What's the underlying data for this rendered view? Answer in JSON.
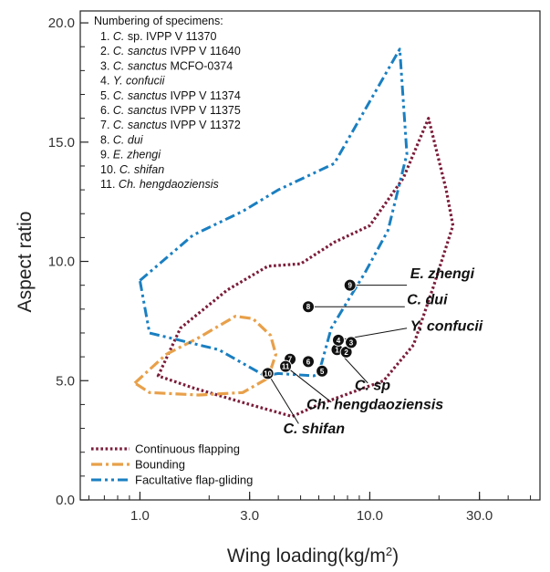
{
  "chart_data": {
    "type": "scatter",
    "xlabel": "Wing loading(kg/m",
    "xlabel_sup": "2",
    "xlabel_end": ")",
    "ylabel": "Aspect ratio",
    "xscale": "log",
    "xlim": [
      0.55,
      55
    ],
    "ylim": [
      0,
      20.5
    ],
    "xticks": [
      {
        "value": 1,
        "label": "1.0"
      },
      {
        "value": 3,
        "label": "3.0"
      },
      {
        "value": 10,
        "label": "10.0"
      },
      {
        "value": 30,
        "label": "30.0"
      }
    ],
    "yticks": [
      {
        "value": 0,
        "label": "0.0"
      },
      {
        "value": 5,
        "label": "5.0"
      },
      {
        "value": 10,
        "label": "10.0"
      },
      {
        "value": 15,
        "label": "15.0"
      },
      {
        "value": 20,
        "label": "20.0"
      }
    ],
    "specimen_title": "Numbering of specimens:",
    "specimens": [
      {
        "num": "1.",
        "genus": "C.",
        "rest": "sp. IVPP V 11370"
      },
      {
        "num": "2.",
        "genus": "C. sanctus",
        "rest": "IVPP V 11640"
      },
      {
        "num": "3.",
        "genus": "C. sanctus",
        "rest": "MCFO-0374"
      },
      {
        "num": "4.",
        "genus": "Y. confucii",
        "rest": ""
      },
      {
        "num": "5.",
        "genus": "C. sanctus",
        "rest": "IVPP V 11374"
      },
      {
        "num": "6.",
        "genus": "C. sanctus",
        "rest": "IVPP V 11375"
      },
      {
        "num": "7.",
        "genus": "C. sanctus",
        "rest": "IVPP V 11372"
      },
      {
        "num": "8.",
        "genus": "C. dui",
        "rest": ""
      },
      {
        "num": "9.",
        "genus": "E. zhengi",
        "rest": ""
      },
      {
        "num": "10.",
        "genus": "C. shifan",
        "rest": ""
      },
      {
        "num": "11.",
        "genus": "Ch. hengdaoziensis",
        "rest": ""
      }
    ],
    "points": [
      {
        "label": "1",
        "x": 7.2,
        "y": 6.3
      },
      {
        "label": "2",
        "x": 7.9,
        "y": 6.2
      },
      {
        "label": "3",
        "x": 8.3,
        "y": 6.6
      },
      {
        "label": "4",
        "x": 7.3,
        "y": 6.7
      },
      {
        "label": "5",
        "x": 6.2,
        "y": 5.4
      },
      {
        "label": "6",
        "x": 5.4,
        "y": 5.8
      },
      {
        "label": "7",
        "x": 4.5,
        "y": 5.9
      },
      {
        "label": "8",
        "x": 5.4,
        "y": 8.1
      },
      {
        "label": "9",
        "x": 8.2,
        "y": 9.0
      },
      {
        "label": "10",
        "x": 3.6,
        "y": 5.3
      },
      {
        "label": "11",
        "x": 4.3,
        "y": 5.6
      }
    ],
    "callouts": [
      {
        "text": "E. zhengi",
        "point": "9",
        "italic_part": "E. zhengi",
        "tx": 15,
        "ty": 9.3,
        "lx": 14.5,
        "ly": 9.0
      },
      {
        "text": "C. dui",
        "point": "8",
        "tx": 14.5,
        "ty": 8.2,
        "lx": 14.2,
        "ly": 8.1
      },
      {
        "text": "Y. confucii",
        "point": "4",
        "tx": 15,
        "ty": 7.1,
        "lx": 14.5,
        "ly": 7.2
      },
      {
        "text": "C. sp",
        "point": "1",
        "tx": 8.6,
        "ty": 4.6,
        "lx": 9.8,
        "ly": 4.9
      },
      {
        "text": "Ch. hengdaoziensis",
        "point": "11",
        "tx": 5.3,
        "ty": 3.8,
        "lx": 6.8,
        "ly": 4.1
      },
      {
        "text": "C. shifan",
        "point": "10",
        "tx": 4.2,
        "ty": 2.8,
        "lx": 4.9,
        "ly": 3.2
      }
    ],
    "series": [
      {
        "name": "Continuous flapping",
        "color": "#7b1d3a",
        "style": "dotted",
        "polygon": [
          [
            1.2,
            5.2
          ],
          [
            1.5,
            7.2
          ],
          [
            2.4,
            8.8
          ],
          [
            3.6,
            9.8
          ],
          [
            5.0,
            9.9
          ],
          [
            7.0,
            10.8
          ],
          [
            10.0,
            11.5
          ],
          [
            14.0,
            13.5
          ],
          [
            18.0,
            16.0
          ],
          [
            21.5,
            13.0
          ],
          [
            23.0,
            11.5
          ],
          [
            19.0,
            9.0
          ],
          [
            15.5,
            6.5
          ],
          [
            11.5,
            5.0
          ],
          [
            6.0,
            4.0
          ],
          [
            4.6,
            3.5
          ],
          [
            3.0,
            4.0
          ],
          [
            1.7,
            4.7
          ]
        ]
      },
      {
        "name": "Bounding",
        "color": "#e8a04a",
        "style": "dashdot",
        "polygon": [
          [
            0.95,
            4.9
          ],
          [
            1.3,
            6.1
          ],
          [
            1.8,
            6.8
          ],
          [
            2.6,
            7.7
          ],
          [
            3.1,
            7.6
          ],
          [
            3.7,
            6.9
          ],
          [
            3.9,
            6.1
          ],
          [
            3.6,
            5.1
          ],
          [
            2.8,
            4.5
          ],
          [
            1.8,
            4.4
          ],
          [
            1.1,
            4.5
          ]
        ]
      },
      {
        "name": "Facultative flap-gliding",
        "color": "#1a7fc1",
        "style": "dashdotdot",
        "polygon": [
          [
            1.0,
            9.2
          ],
          [
            1.7,
            11.1
          ],
          [
            2.8,
            12.1
          ],
          [
            4.0,
            13.0
          ],
          [
            7.0,
            14.1
          ],
          [
            13.5,
            18.9
          ],
          [
            14.5,
            14.5
          ],
          [
            12.0,
            11.3
          ],
          [
            9.5,
            9.5
          ],
          [
            8.2,
            8.5
          ],
          [
            6.8,
            7.2
          ],
          [
            6.0,
            5.3
          ],
          [
            5.7,
            5.2
          ],
          [
            4.0,
            5.3
          ],
          [
            3.5,
            5.2
          ],
          [
            2.2,
            6.3
          ],
          [
            1.1,
            7.0
          ]
        ]
      }
    ],
    "legend": {
      "position": "bottom-left"
    }
  }
}
